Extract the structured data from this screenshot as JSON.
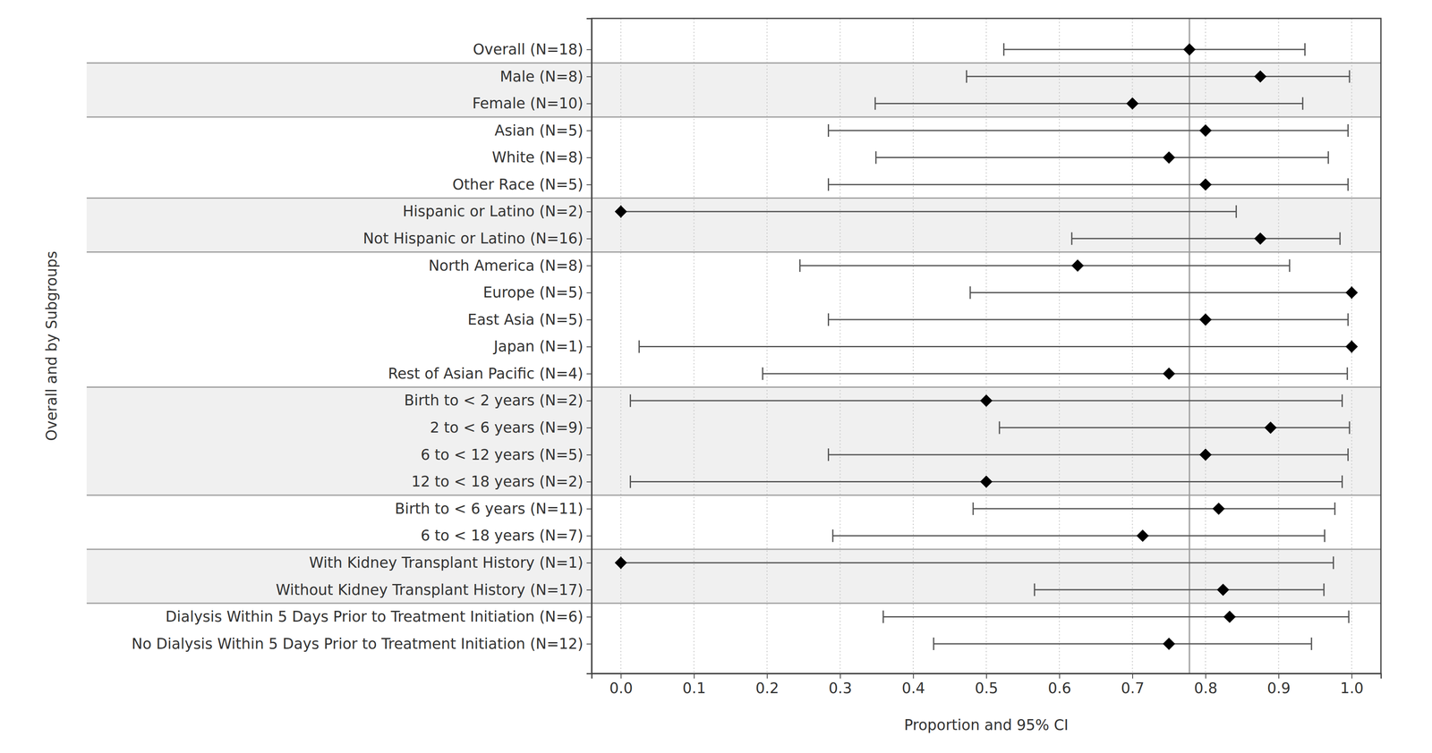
{
  "chart_data": {
    "type": "forest",
    "orientation": "horizontal",
    "grid": true,
    "x_label": "Proportion and 95% CI",
    "y_label": "Overall and by Subgroups",
    "categories": [
      "Overall (N=18)",
      "Male (N=8)",
      "Female (N=10)",
      "Asian (N=5)",
      "White (N=8)",
      "Other Race (N=5)",
      "Hispanic or Latino (N=2)",
      "Not Hispanic or Latino (N=16)",
      "North America (N=8)",
      "Europe (N=5)",
      "East Asia (N=5)",
      "Japan (N=1)",
      "Rest of Asian Pacific (N=4)",
      "Birth to < 2 years (N=2)",
      "2 to < 6 years (N=9)",
      "6 to < 12 years (N=5)",
      "12 to < 18 years (N=2)",
      "Birth to < 6 years (N=11)",
      "6 to < 18 years (N=7)",
      "With Kidney Transplant History (N=1)",
      "Without Kidney Transplant History (N=17)",
      "Dialysis Within 5 Days Prior to Treatment Initiation (N=6)",
      "No Dialysis Within 5 Days Prior to Treatment Initiation (N=12)"
    ],
    "values": [
      0.778,
      0.875,
      0.7,
      0.8,
      0.75,
      0.8,
      0.0,
      0.875,
      0.625,
      1.0,
      0.8,
      1.0,
      0.75,
      0.5,
      0.889,
      0.8,
      0.5,
      0.818,
      0.714,
      0.0,
      0.824,
      0.833,
      0.75
    ],
    "ci_lower": [
      0.524,
      0.473,
      0.348,
      0.284,
      0.349,
      0.284,
      0.0,
      0.617,
      0.245,
      0.478,
      0.284,
      0.025,
      0.194,
      0.013,
      0.518,
      0.284,
      0.013,
      0.482,
      0.29,
      0.0,
      0.566,
      0.359,
      0.428
    ],
    "ci_upper": [
      0.936,
      0.997,
      0.933,
      0.995,
      0.968,
      0.995,
      0.842,
      0.984,
      0.915,
      1.0,
      0.995,
      1.0,
      0.994,
      0.987,
      0.997,
      0.995,
      0.987,
      0.977,
      0.963,
      0.975,
      0.962,
      0.996,
      0.945
    ],
    "xlim": [
      -0.04,
      1.04
    ],
    "xticks": [
      {
        "value": 0,
        "label": "0.0"
      },
      0.1,
      0.2,
      0.3,
      0.4,
      0.5,
      0.6,
      0.7,
      0.8,
      0.9,
      {
        "value": 1,
        "label": "1.0"
      }
    ]
  }
}
